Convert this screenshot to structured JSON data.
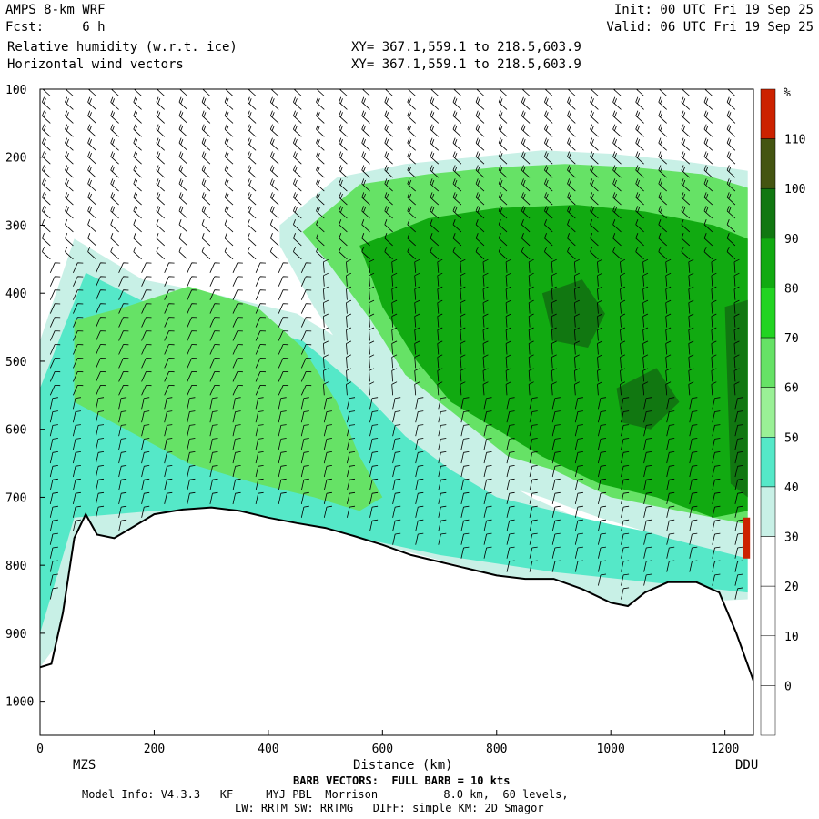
{
  "header": {
    "left_line1": "AMPS 8-km WRF",
    "left_line2": "Fcst:     6 h",
    "left_line3": "Relative humidity (w.r.t. ice)",
    "left_line4": "Horizontal wind vectors",
    "right_line1": "Init: 00 UTC Fri 19 Sep 25",
    "right_line2": "Valid: 06 UTC Fri 19 Sep 25",
    "xy_line1": "XY= 367.1,559.1 to 218.5,603.9",
    "xy_line2": "XY= 367.1,559.1 to 218.5,603.9"
  },
  "footer": {
    "barb_note": "BARB VECTORS:  FULL BARB = 10 kts",
    "model_info": "Model Info: V4.3.3   KF     MYJ PBL  Morrison          8.0 km,  60 levels,",
    "physics": "LW: RRTM SW: RRTMG   DIFF: simple KM: 2D Smagor"
  },
  "chart_data": {
    "type": "heatmap",
    "title": "Relative humidity (w.r.t. ice)",
    "xlabel": "Distance (km)",
    "ylabel": "",
    "xlim": [
      0,
      1250
    ],
    "ylim": [
      1050,
      100
    ],
    "y_scale": "linear, pressure decreasing upward",
    "x_ticks": [
      0,
      200,
      400,
      600,
      800,
      1000,
      1200
    ],
    "y_ticks": [
      100,
      200,
      300,
      400,
      500,
      600,
      700,
      800,
      900,
      1000
    ],
    "x_endpoint_labels": {
      "left": "MZS",
      "right": "DDU"
    },
    "colorbar": {
      "unit": "%",
      "levels": [
        0,
        10,
        20,
        30,
        40,
        50,
        60,
        70,
        80,
        90,
        100,
        110
      ],
      "colors": [
        "#ffffff",
        "#ffffff",
        "#ffffff",
        "#c8f0e6",
        "#55e8c8",
        "#9af096",
        "#66e266",
        "#22d422",
        "#11aa11",
        "#117711",
        "#445511",
        "#cc2200"
      ]
    },
    "terrain": {
      "x": [
        0,
        20,
        40,
        60,
        80,
        100,
        130,
        160,
        200,
        250,
        300,
        350,
        400,
        450,
        500,
        550,
        600,
        650,
        700,
        750,
        800,
        850,
        900,
        950,
        1000,
        1030,
        1060,
        1100,
        1150,
        1190,
        1220,
        1250
      ],
      "p": [
        950,
        945,
        870,
        760,
        725,
        755,
        760,
        745,
        725,
        718,
        715,
        720,
        730,
        738,
        745,
        757,
        770,
        785,
        795,
        805,
        815,
        820,
        820,
        835,
        855,
        860,
        840,
        825,
        825,
        840,
        900,
        970
      ]
    },
    "rh_regions": [
      {
        "label": "30",
        "x": [
          0,
          60,
          180,
          300,
          450,
          550,
          620,
          700,
          780,
          860,
          940,
          1000,
          1100,
          1240,
          1240,
          1000,
          800,
          600,
          400,
          200,
          0
        ],
        "p": [
          470,
          320,
          380,
          400,
          430,
          480,
          560,
          620,
          660,
          700,
          730,
          760,
          800,
          820,
          850,
          860,
          815,
          770,
          730,
          725,
          950
        ]
      },
      {
        "label": "50",
        "x": [
          0,
          80,
          200,
          330,
          460,
          560,
          640,
          720,
          800,
          900,
          1000,
          1240,
          1240,
          900,
          700,
          450,
          200,
          60,
          0
        ],
        "p": [
          540,
          370,
          420,
          440,
          470,
          540,
          610,
          660,
          700,
          720,
          740,
          780,
          840,
          810,
          785,
          740,
          720,
          730,
          900
        ]
      },
      {
        "label": "70",
        "x": [
          60,
          150,
          260,
          380,
          460,
          520,
          560,
          600,
          560,
          480,
          380,
          260,
          150,
          60
        ],
        "p": [
          440,
          420,
          390,
          420,
          480,
          560,
          640,
          700,
          720,
          700,
          680,
          650,
          600,
          560
        ]
      },
      {
        "label": "upper30",
        "x": [
          420,
          520,
          640,
          760,
          880,
          1000,
          1120,
          1240,
          1240,
          1100,
          980,
          880,
          800,
          720,
          640,
          560,
          480,
          420
        ],
        "p": [
          300,
          230,
          210,
          200,
          190,
          195,
          205,
          220,
          790,
          760,
          730,
          700,
          680,
          640,
          600,
          520,
          420,
          330
        ]
      },
      {
        "label": "upper70",
        "x": [
          460,
          560,
          680,
          800,
          920,
          1040,
          1160,
          1240,
          1240,
          1120,
          1000,
          900,
          820,
          760,
          700,
          640,
          580,
          500
        ],
        "p": [
          310,
          240,
          225,
          215,
          210,
          215,
          225,
          245,
          740,
          720,
          700,
          660,
          640,
          600,
          560,
          520,
          440,
          350
        ]
      },
      {
        "label": "90",
        "x": [
          560,
          680,
          800,
          940,
          1060,
          1180,
          1240,
          1240,
          1180,
          1080,
          980,
          880,
          800,
          720,
          660,
          600
        ],
        "p": [
          330,
          290,
          275,
          270,
          280,
          300,
          320,
          720,
          730,
          700,
          680,
          640,
          600,
          560,
          500,
          420
        ]
      },
      {
        "label": "100",
        "x": [
          880,
          950,
          990,
          960,
          900
        ],
        "p": [
          400,
          380,
          430,
          480,
          470
        ]
      },
      {
        "label": "100b",
        "x": [
          1010,
          1080,
          1120,
          1070,
          1020
        ],
        "p": [
          540,
          510,
          560,
          600,
          590
        ]
      },
      {
        "label": "100c",
        "x": [
          1200,
          1240,
          1240,
          1210
        ],
        "p": [
          420,
          410,
          700,
          680
        ]
      },
      {
        "label": "110",
        "x": [
          1232,
          1244,
          1244,
          1232
        ],
        "p": [
          730,
          730,
          790,
          790
        ]
      }
    ],
    "wind_barbs": {
      "columns_x": [
        18,
        58,
        98,
        138,
        178,
        218,
        258,
        298,
        338,
        378,
        418,
        458,
        498,
        538,
        578,
        618,
        658,
        698,
        738,
        778,
        818,
        858,
        898,
        938,
        978,
        1018,
        1058,
        1098,
        1138,
        1178,
        1218
      ],
      "levels_p": [
        110,
        130,
        150,
        170,
        190,
        210,
        230,
        250,
        270,
        290,
        310,
        330,
        350,
        370,
        390,
        410,
        430,
        450,
        470,
        490,
        510,
        530,
        550,
        570,
        590,
        610,
        630,
        650,
        670,
        690,
        710,
        730,
        750,
        770,
        790,
        810,
        830,
        850
      ]
    }
  }
}
